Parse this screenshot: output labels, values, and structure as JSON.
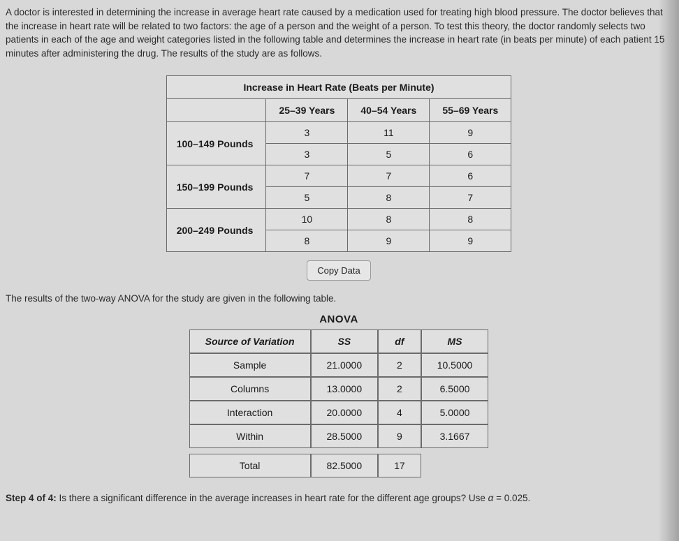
{
  "intro": "A doctor is interested in determining the increase in average heart rate caused by a medication used for treating high blood pressure. The doctor believes that the increase in heart rate will be related to two factors: the age of a person and the weight of a person. To test this theory, the doctor randomly selects two patients in each of the age and weight categories listed in the following table and determines the increase in heart rate (in beats per minute) of each patient 15 minutes after administering the drug. The results of the study are as follows.",
  "data_table": {
    "title": "Increase in Heart Rate (Beats per Minute)",
    "col_headers": [
      "25–39 Years",
      "40–54 Years",
      "55–69 Years"
    ],
    "row_groups": [
      {
        "label": "100–149 Pounds",
        "rows": [
          [
            "3",
            "11",
            "9"
          ],
          [
            "3",
            "5",
            "6"
          ]
        ]
      },
      {
        "label": "150–199 Pounds",
        "rows": [
          [
            "7",
            "7",
            "6"
          ],
          [
            "5",
            "8",
            "7"
          ]
        ]
      },
      {
        "label": "200–249 Pounds",
        "rows": [
          [
            "10",
            "8",
            "8"
          ],
          [
            "8",
            "9",
            "9"
          ]
        ]
      }
    ]
  },
  "copy_button": "Copy Data",
  "mid_text": "The results of the two-way ANOVA for the study are given in the following table.",
  "anova": {
    "title": "ANOVA",
    "headers": [
      "Source of Variation",
      "SS",
      "df",
      "MS"
    ],
    "rows": [
      [
        "Sample",
        "21.0000",
        "2",
        "10.5000"
      ],
      [
        "Columns",
        "13.0000",
        "2",
        "6.5000"
      ],
      [
        "Interaction",
        "20.0000",
        "4",
        "5.0000"
      ],
      [
        "Within",
        "28.5000",
        "9",
        "3.1667"
      ]
    ],
    "total": [
      "Total",
      "82.5000",
      "17",
      ""
    ]
  },
  "step": {
    "prefix": "Step 4 of 4:",
    "text": " Is there a significant difference in the average increases in heart rate for the different age groups? Use ",
    "alpha_sym": "α",
    "eq": " = ",
    "alpha_val": "0.025",
    "period": "."
  },
  "colors": {
    "bg": "#d8d8d8",
    "border": "#6b6b6b",
    "text": "#2a2a2a"
  }
}
